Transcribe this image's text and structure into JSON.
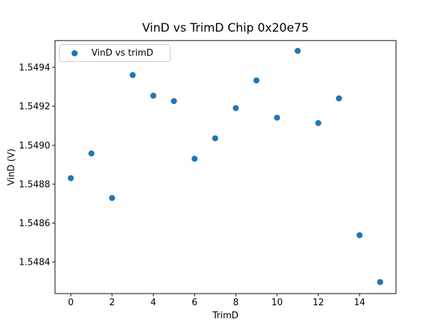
{
  "figure": {
    "background_color": "#ffffff",
    "text_color": "#000000",
    "axis_color": "#000000"
  },
  "chart_data": {
    "type": "scatter",
    "title": "VinD vs TrimD Chip 0x20e75",
    "xlabel": "TrimD",
    "ylabel": "VinD (V)",
    "legend": {
      "label": "VinD vs trimD",
      "position": "upper left"
    },
    "marker_color": "#1f77b4",
    "grid": false,
    "x": [
      0,
      1,
      2,
      3,
      4,
      5,
      6,
      7,
      8,
      9,
      10,
      11,
      12,
      13,
      14,
      15
    ],
    "y": [
      1.548831,
      1.548958,
      1.548729,
      1.549361,
      1.549255,
      1.549227,
      1.548931,
      1.549036,
      1.549191,
      1.549333,
      1.549142,
      1.549485,
      1.549114,
      1.549241,
      1.548538,
      1.548297
    ],
    "xlim": [
      -0.767,
      15.767
    ],
    "ylim": [
      1.548238,
      1.549538
    ],
    "xtick_labels": [
      "0",
      "2",
      "4",
      "6",
      "8",
      "10",
      "12",
      "14"
    ],
    "ytick_labels": [
      "1.5484",
      "1.5486",
      "1.5488",
      "1.5490",
      "1.5492",
      "1.5494"
    ]
  }
}
